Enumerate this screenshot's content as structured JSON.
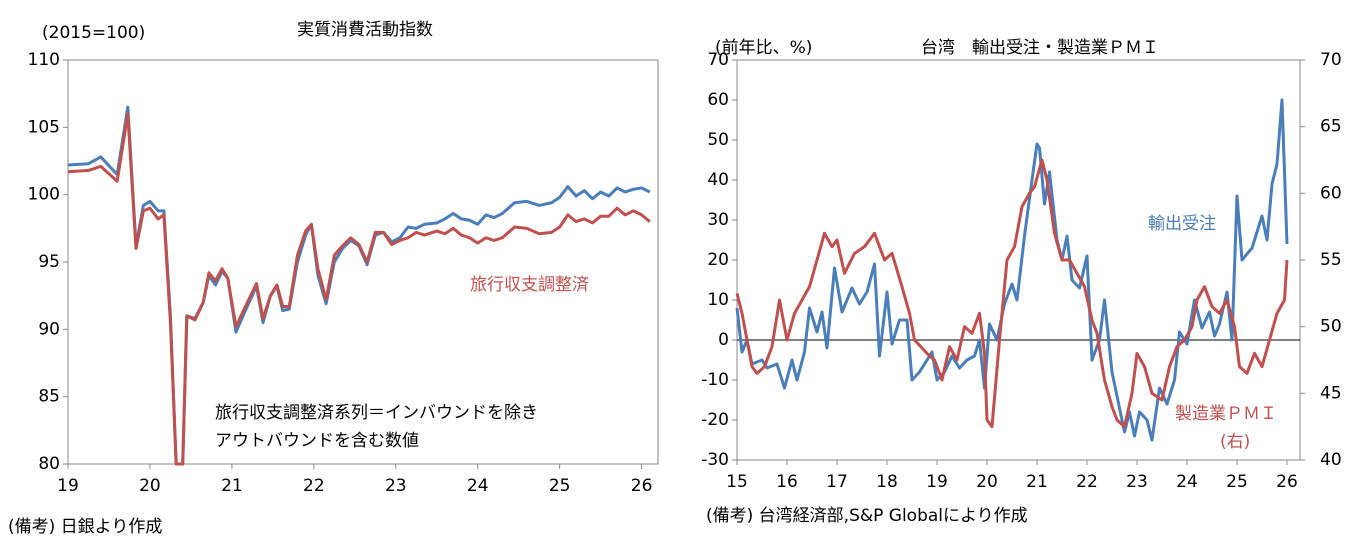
{
  "chart_data": [
    {
      "type": "line",
      "title": "実質消費活動指数",
      "unit_label": "(2015=100)",
      "note": "(備考) 日銀より作成",
      "annotations": [
        "旅行収支調整済系列＝インバウンドを除き",
        "アウトバウンドを含む数値"
      ],
      "xlim": [
        19,
        26.2
      ],
      "xticks": [
        19,
        20,
        21,
        22,
        23,
        24,
        25,
        26
      ],
      "ylim": [
        80,
        110
      ],
      "yticks": [
        80,
        85,
        90,
        95,
        100,
        105,
        110
      ],
      "x": [
        19.0,
        19.25,
        19.4,
        19.6,
        19.73,
        19.83,
        19.92,
        20.0,
        20.1,
        20.17,
        20.25,
        20.32,
        20.4,
        20.45,
        20.55,
        20.65,
        20.72,
        20.8,
        20.88,
        20.95,
        21.05,
        21.15,
        21.3,
        21.38,
        21.47,
        21.55,
        21.62,
        21.7,
        21.8,
        21.9,
        21.97,
        22.05,
        22.15,
        22.25,
        22.35,
        22.45,
        22.55,
        22.65,
        22.75,
        22.85,
        22.95,
        23.05,
        23.15,
        23.25,
        23.35,
        23.5,
        23.6,
        23.7,
        23.8,
        23.9,
        24.0,
        24.1,
        24.2,
        24.3,
        24.45,
        24.6,
        24.75,
        24.9,
        25.0,
        25.1,
        25.2,
        25.3,
        25.4,
        25.5,
        25.6,
        25.7,
        25.8,
        25.9,
        26.0,
        26.1
      ],
      "series": [
        {
          "color": "#4a7ebb",
          "values": [
            102.2,
            102.3,
            102.8,
            101.5,
            106.5,
            96.2,
            99.2,
            99.5,
            98.8,
            98.8,
            91.0,
            80.0,
            80.0,
            91.0,
            90.8,
            92.0,
            94.0,
            93.3,
            94.3,
            93.8,
            89.8,
            91.2,
            93.2,
            90.5,
            92.5,
            93.2,
            91.4,
            91.5,
            95.0,
            97.0,
            97.8,
            94.0,
            91.9,
            95.0,
            96.0,
            96.6,
            96.2,
            94.8,
            97.0,
            97.2,
            96.5,
            96.8,
            97.6,
            97.5,
            97.8,
            97.9,
            98.2,
            98.6,
            98.2,
            98.1,
            97.8,
            98.5,
            98.3,
            98.6,
            99.4,
            99.5,
            99.2,
            99.4,
            99.8,
            100.6,
            99.9,
            100.3,
            99.7,
            100.2,
            99.9,
            100.5,
            100.2,
            100.4,
            100.5,
            100.2
          ]
        },
        {
          "name": "旅行収支調整済",
          "color": "#c0504d",
          "values": [
            101.7,
            101.8,
            102.1,
            101.0,
            106.0,
            96.0,
            98.8,
            99.0,
            98.2,
            98.5,
            90.5,
            80.0,
            80.0,
            91.0,
            90.7,
            92.0,
            94.2,
            93.6,
            94.5,
            93.8,
            90.2,
            91.5,
            93.4,
            90.8,
            92.5,
            93.3,
            91.7,
            91.7,
            95.5,
            97.3,
            97.8,
            94.5,
            92.2,
            95.5,
            96.2,
            96.8,
            96.3,
            95.0,
            97.2,
            97.2,
            96.3,
            96.6,
            96.8,
            97.2,
            97.0,
            97.3,
            97.1,
            97.5,
            97.0,
            96.8,
            96.4,
            96.8,
            96.6,
            96.8,
            97.6,
            97.5,
            97.1,
            97.2,
            97.6,
            98.5,
            98.0,
            98.2,
            97.9,
            98.4,
            98.4,
            99.0,
            98.5,
            98.8,
            98.5,
            98.0
          ]
        }
      ]
    },
    {
      "type": "line",
      "title": "台湾　輸出受注・製造業ＰＭＩ",
      "unit_label": "(前年比、%)",
      "note": "(備考) 台湾経済部,S&P Globalにより作成",
      "annotations": [
        "(右)"
      ],
      "zero_line": true,
      "xlim": [
        15,
        26.26
      ],
      "xticks": [
        15,
        16,
        17,
        18,
        19,
        20,
        21,
        22,
        23,
        24,
        25,
        26
      ],
      "ylim": [
        -30,
        70
      ],
      "yticks": [
        -30,
        -20,
        -10,
        0,
        10,
        20,
        30,
        40,
        50,
        60,
        70
      ],
      "y2lim": [
        40,
        70
      ],
      "y2ticks": [
        40,
        45,
        50,
        55,
        60,
        65,
        70
      ],
      "series": [
        {
          "name": "輸出受注",
          "color": "#4a7ebb",
          "x": [
            15.0,
            15.1,
            15.2,
            15.3,
            15.5,
            15.6,
            15.8,
            15.95,
            16.1,
            16.2,
            16.35,
            16.45,
            16.6,
            16.7,
            16.8,
            16.95,
            17.1,
            17.3,
            17.45,
            17.6,
            17.75,
            17.85,
            18.0,
            18.1,
            18.25,
            18.4,
            18.5,
            18.65,
            18.8,
            18.9,
            19.0,
            19.15,
            19.3,
            19.45,
            19.6,
            19.75,
            19.85,
            19.95,
            20.05,
            20.2,
            20.35,
            20.5,
            20.6,
            20.75,
            20.9,
            21.0,
            21.05,
            21.15,
            21.25,
            21.4,
            21.5,
            21.6,
            21.7,
            21.85,
            22.0,
            22.1,
            22.25,
            22.35,
            22.5,
            22.6,
            22.75,
            22.85,
            22.95,
            23.05,
            23.2,
            23.3,
            23.45,
            23.6,
            23.75,
            23.85,
            24.0,
            24.15,
            24.3,
            24.45,
            24.55,
            24.65,
            24.8,
            24.9,
            25.0,
            25.1,
            25.3,
            25.5,
            25.6,
            25.7,
            25.8,
            25.9,
            26.0
          ],
          "values": [
            8,
            -3,
            0,
            -6,
            -5,
            -7,
            -6,
            -12,
            -5,
            -10,
            -3,
            8,
            2,
            7,
            -2,
            18,
            7,
            13,
            9,
            12,
            19,
            -4,
            12,
            -1,
            5,
            5,
            -10,
            -8,
            -5,
            -3,
            -10,
            -8,
            -4,
            -7,
            -5,
            -4,
            0,
            -12,
            4,
            0,
            9,
            14,
            10,
            26,
            40,
            49,
            48,
            34,
            42,
            25,
            20,
            26,
            15,
            13,
            21,
            -5,
            0,
            10,
            -8,
            -14,
            -23,
            -18,
            -24,
            -18,
            -20,
            -25,
            -12,
            -16,
            -10,
            2,
            -1,
            10,
            3,
            7,
            1,
            4,
            12,
            0,
            36,
            20,
            23,
            31,
            25,
            39,
            44,
            60,
            24
          ]
        },
        {
          "name": "製造業ＰＭＩ",
          "color": "#c0504d",
          "axis": "y2",
          "x": [
            15.0,
            15.1,
            15.2,
            15.3,
            15.4,
            15.55,
            15.7,
            15.85,
            16.0,
            16.15,
            16.3,
            16.45,
            16.6,
            16.75,
            16.9,
            17.0,
            17.15,
            17.35,
            17.55,
            17.75,
            17.95,
            18.1,
            18.3,
            18.45,
            18.55,
            18.8,
            18.95,
            19.1,
            19.25,
            19.4,
            19.55,
            19.7,
            19.85,
            19.95,
            20.0,
            20.1,
            20.25,
            20.4,
            20.55,
            20.7,
            20.85,
            20.95,
            21.1,
            21.2,
            21.35,
            21.5,
            21.65,
            21.8,
            21.95,
            22.1,
            22.2,
            22.35,
            22.5,
            22.6,
            22.75,
            22.9,
            23.0,
            23.15,
            23.3,
            23.5,
            23.65,
            23.8,
            23.95,
            24.1,
            24.2,
            24.35,
            24.5,
            24.65,
            24.8,
            24.95,
            25.05,
            25.2,
            25.35,
            25.5,
            25.65,
            25.8,
            25.95,
            26.0
          ],
          "values": [
            52.5,
            51,
            49,
            47,
            46.5,
            47,
            48.5,
            52,
            49,
            51,
            52,
            53,
            55,
            57,
            56,
            56.5,
            54,
            55.5,
            56,
            57,
            55,
            55.5,
            53,
            51,
            49,
            48,
            47.5,
            46,
            48.5,
            47.5,
            50,
            49.5,
            51,
            48,
            43,
            42.5,
            49,
            55,
            56,
            59,
            60,
            60.5,
            62.5,
            61,
            57,
            55,
            55,
            54,
            53,
            50.5,
            49.5,
            46,
            44,
            43,
            42.5,
            45,
            48,
            47,
            45,
            44.5,
            47,
            48.5,
            49,
            50,
            52,
            53,
            51.5,
            51,
            52,
            50,
            47,
            46.5,
            48,
            47,
            49,
            51,
            52,
            55
          ]
        }
      ]
    }
  ]
}
